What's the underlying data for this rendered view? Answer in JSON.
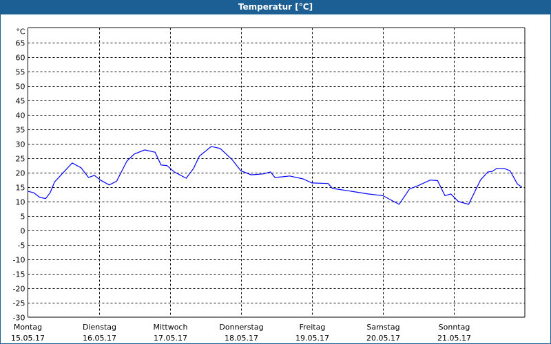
{
  "window": {
    "title": "Temperatur [°C]"
  },
  "colors": {
    "titlebar": "#1c5f94",
    "line": "#0000ff",
    "grid": "#000000"
  },
  "chart_data": {
    "type": "line",
    "title": "Temperatur [°C]",
    "yunit": "°C",
    "ylim": [
      -30,
      70
    ],
    "yticks": [
      65,
      60,
      55,
      50,
      45,
      40,
      35,
      30,
      25,
      20,
      15,
      10,
      5,
      0,
      -5,
      -10,
      -15,
      -20,
      -25,
      -30
    ],
    "xlim_hours": [
      0,
      168
    ],
    "grid": true,
    "day_labels": [
      {
        "day": "Montag",
        "date": "15.05.17"
      },
      {
        "day": "Dienstag",
        "date": "16.05.17"
      },
      {
        "day": "Mittwoch",
        "date": "17.05.17"
      },
      {
        "day": "Donnerstag",
        "date": "18.05.17"
      },
      {
        "day": "Freitag",
        "date": "19.05.17"
      },
      {
        "day": "Samstag",
        "date": "20.05.17"
      },
      {
        "day": "Sonntag",
        "date": "21.05.17"
      }
    ],
    "series": [
      {
        "hours": [
          0,
          2,
          4,
          6,
          7.5,
          9,
          12,
          15,
          18,
          20.5,
          22.5,
          24.5,
          27.5,
          30,
          33.5,
          36,
          39.5,
          43,
          45,
          47,
          49.5,
          53.5,
          56,
          58,
          62,
          65,
          69,
          72,
          75.5,
          79.5,
          82,
          83.5,
          86,
          88.5,
          93,
          96,
          101.5,
          103,
          109.5,
          115,
          120,
          125.5,
          129,
          132,
          136,
          138.5,
          141,
          143,
          145.5,
          149,
          153,
          155.5,
          157,
          158.5,
          161,
          163,
          165.5,
          167
        ],
        "values": [
          13.5,
          13,
          11.4,
          11,
          13,
          16.7,
          20,
          23.3,
          21.6,
          18.3,
          19,
          17.4,
          15.7,
          17,
          24,
          26.4,
          27.8,
          27,
          22.6,
          22.4,
          20.2,
          18,
          21.4,
          25.7,
          29,
          28.3,
          24.5,
          20.6,
          19.2,
          19.5,
          20.2,
          18.3,
          18.5,
          18.8,
          17.8,
          16.4,
          16.2,
          14.5,
          13.5,
          12.6,
          12,
          9,
          14.3,
          15.5,
          17.4,
          17.2,
          12,
          12.6,
          10,
          9,
          17.4,
          20.2,
          20.4,
          21.4,
          21.4,
          20.6,
          16,
          15
        ]
      }
    ]
  }
}
